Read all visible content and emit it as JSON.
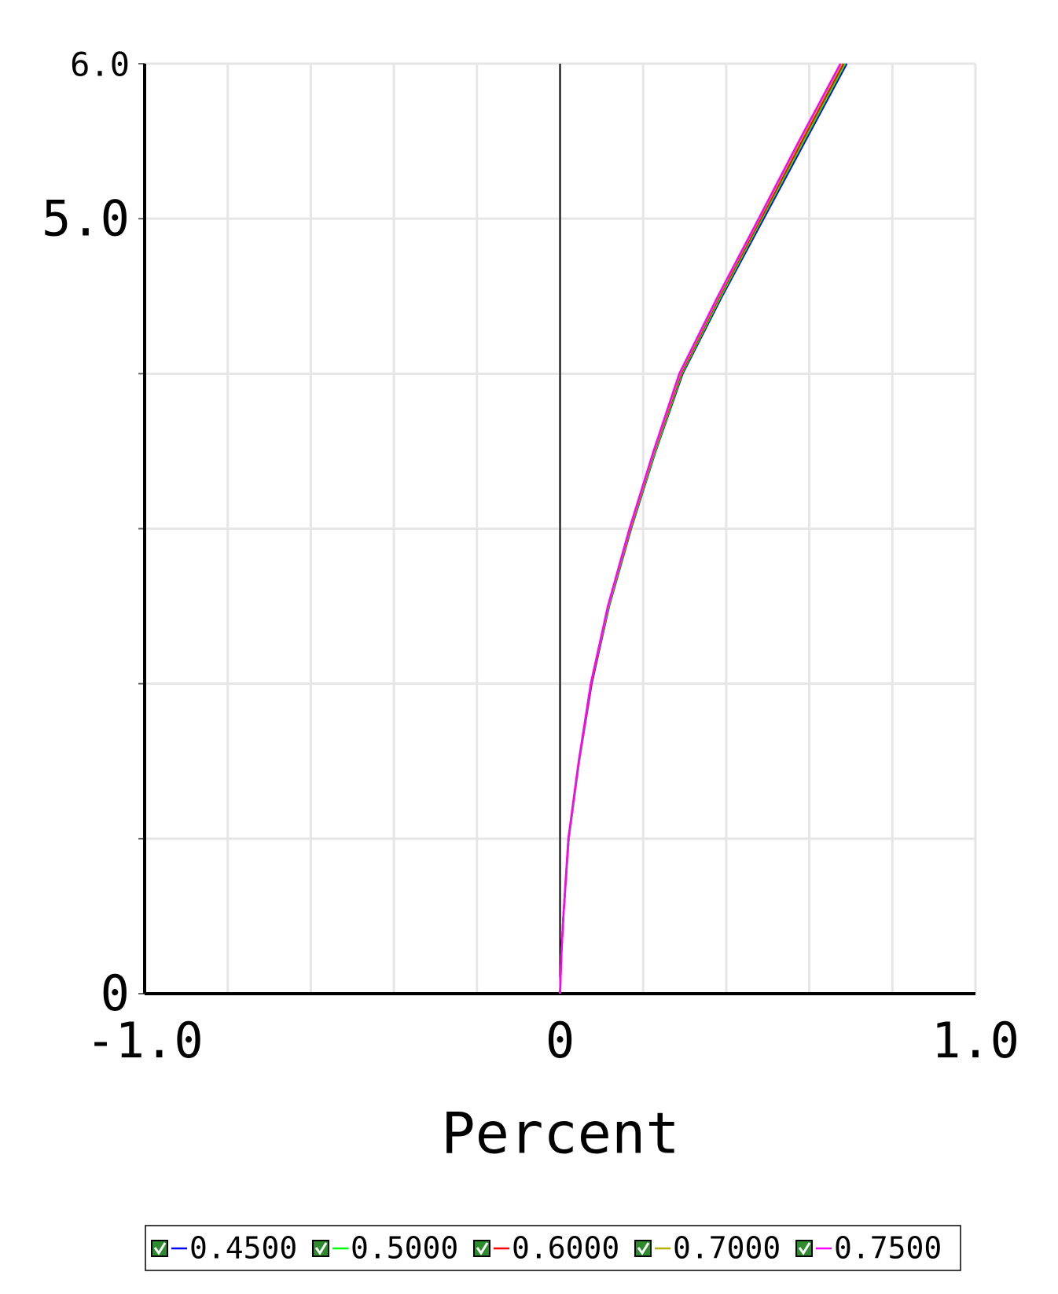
{
  "chart_data": {
    "type": "line",
    "x_label": "Percent",
    "y": [
      0,
      0.25,
      0.5,
      1,
      1.5,
      2,
      2.5,
      3,
      3.5,
      4,
      4.5,
      5,
      5.5,
      6
    ],
    "series": [
      {
        "name": "0.4500",
        "color": "#0000ff",
        "values": [
          0,
          0.003,
          0.008,
          0.021,
          0.046,
          0.076,
          0.118,
          0.171,
          0.23,
          0.295,
          0.39,
          0.49,
          0.59,
          0.69
        ]
      },
      {
        "name": "0.5000",
        "color": "#00ff00",
        "values": [
          0,
          0.003,
          0.008,
          0.021,
          0.046,
          0.075,
          0.117,
          0.17,
          0.229,
          0.293,
          0.387,
          0.486,
          0.586,
          0.686
        ]
      },
      {
        "name": "0.6000",
        "color": "#ff0000",
        "values": [
          0,
          0.003,
          0.008,
          0.02,
          0.045,
          0.075,
          0.116,
          0.169,
          0.227,
          0.291,
          0.384,
          0.483,
          0.582,
          0.682
        ]
      },
      {
        "name": "0.7000",
        "color": "#b4b400",
        "values": [
          0,
          0.003,
          0.008,
          0.02,
          0.045,
          0.074,
          0.116,
          0.168,
          0.226,
          0.289,
          0.382,
          0.48,
          0.578,
          0.678
        ]
      },
      {
        "name": "0.7500",
        "color": "#ff00ff",
        "values": [
          0,
          0.003,
          0.008,
          0.02,
          0.045,
          0.074,
          0.115,
          0.167,
          0.225,
          0.287,
          0.38,
          0.478,
          0.575,
          0.675
        ]
      }
    ],
    "xlim": [
      -1,
      1
    ],
    "ylim": [
      0,
      6
    ],
    "xticks": [
      {
        "value": -1,
        "label": "-1.0"
      },
      {
        "value": -0.8,
        "label": null
      },
      {
        "value": -0.6,
        "label": null
      },
      {
        "value": -0.4,
        "label": null
      },
      {
        "value": -0.2,
        "label": null
      },
      0,
      {
        "value": 0.2,
        "label": null
      },
      {
        "value": 0.4,
        "label": null
      },
      {
        "value": 0.6,
        "label": null
      },
      {
        "value": 0.8,
        "label": null
      },
      {
        "value": 1,
        "label": "1.0"
      }
    ],
    "yticks": [
      0,
      {
        "value": 1,
        "label": null
      },
      {
        "value": 2,
        "label": null
      },
      {
        "value": 3,
        "label": null
      },
      {
        "value": 4,
        "label": null
      },
      {
        "value": 5,
        "label": "5.0"
      },
      {
        "value": 6,
        "label": "6.0"
      }
    ],
    "grid": true
  }
}
